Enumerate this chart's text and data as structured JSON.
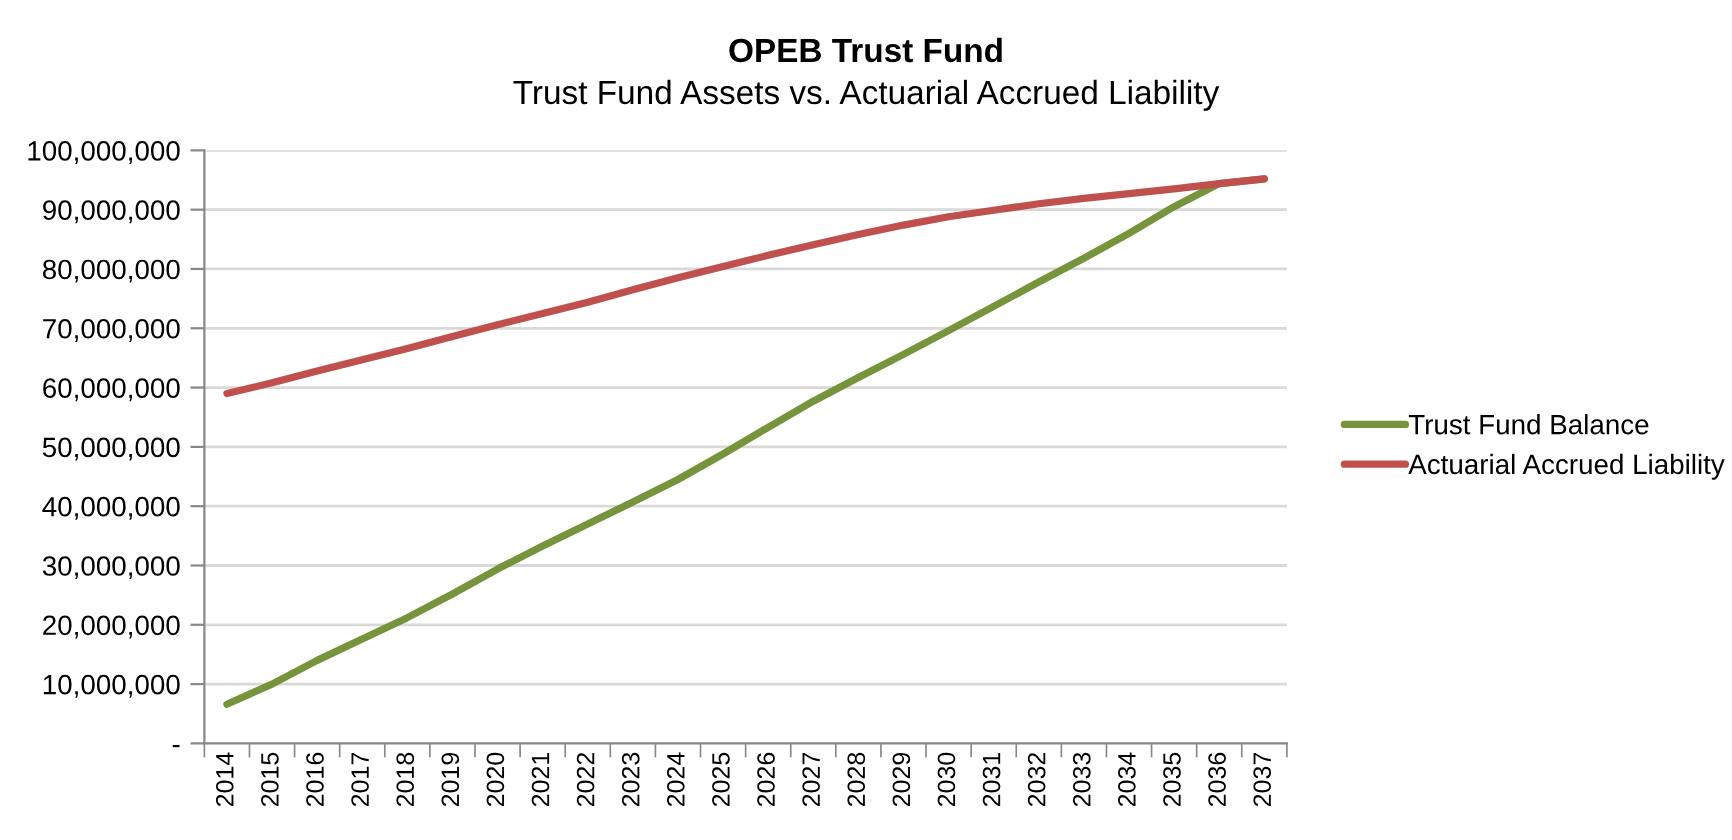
{
  "chart_data": {
    "type": "line",
    "title": "OPEB Trust Fund",
    "subtitle": "Trust Fund Assets vs. Actuarial Accrued Liability",
    "categories": [
      "2014",
      "2015",
      "2016",
      "2017",
      "2018",
      "2019",
      "2020",
      "2021",
      "2022",
      "2023",
      "2024",
      "2025",
      "2026",
      "2027",
      "2028",
      "2029",
      "2030",
      "2031",
      "2032",
      "2033",
      "2034",
      "2035",
      "2036",
      "2037"
    ],
    "series": [
      {
        "name": "Trust Fund Balance",
        "color": "#77933c",
        "values": [
          6600000,
          10000000,
          14000000,
          17600000,
          21200000,
          25200000,
          29400000,
          33300000,
          37000000,
          40700000,
          44500000,
          48800000,
          53300000,
          57700000,
          61700000,
          65600000,
          69600000,
          73700000,
          77800000,
          81800000,
          86000000,
          90500000,
          94400000,
          95200000
        ]
      },
      {
        "name": "Actuarial Accrued Liability",
        "color": "#c0504d",
        "values": [
          59000000,
          60800000,
          62800000,
          64700000,
          66600000,
          68600000,
          70600000,
          72500000,
          74400000,
          76500000,
          78500000,
          80400000,
          82300000,
          84100000,
          85800000,
          87400000,
          88800000,
          89900000,
          91000000,
          91900000,
          92700000,
          93500000,
          94400000,
          95200000
        ]
      }
    ],
    "ylim": [
      0,
      100000000
    ],
    "yticks": [
      {
        "value": 0,
        "label": "-"
      },
      {
        "value": 10000000,
        "label": "10,000,000"
      },
      {
        "value": 20000000,
        "label": "20,000,000"
      },
      {
        "value": 30000000,
        "label": "30,000,000"
      },
      {
        "value": 40000000,
        "label": "40,000,000"
      },
      {
        "value": 50000000,
        "label": "50,000,000"
      },
      {
        "value": 60000000,
        "label": "60,000,000"
      },
      {
        "value": 70000000,
        "label": "70,000,000"
      },
      {
        "value": 80000000,
        "label": "80,000,000"
      },
      {
        "value": 90000000,
        "label": "90,000,000"
      },
      {
        "value": 100000000,
        "label": "100,000,000"
      }
    ],
    "grid": "y",
    "legend": "right",
    "marker": "none",
    "line_style": "solid"
  }
}
